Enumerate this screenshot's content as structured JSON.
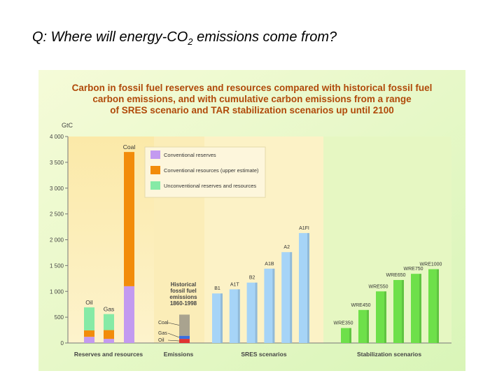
{
  "slide": {
    "title_main": "Q:  Where will energy-CO",
    "title_sub": "2",
    "title_end": " emissions come from?"
  },
  "chart_data": {
    "type": "bar",
    "title_lines": [
      "Carbon in fossil fuel reserves and resources compared with historical fossil fuel",
      "carbon emissions, and with cumulative carbon emissions from a range",
      "of SRES scenario and TAR stabilization scenarios up until 2100"
    ],
    "y_label": "GtC",
    "ylim": [
      0,
      4000
    ],
    "yticks": [
      0,
      {
        "value": 500,
        "label": "500"
      },
      {
        "value": 1000,
        "label": "1 000"
      },
      {
        "value": 1500,
        "label": "1 500"
      },
      {
        "value": 2000,
        "label": "2 000"
      },
      {
        "value": 2500,
        "label": "2 500"
      },
      {
        "value": 3000,
        "label": "3 000"
      },
      {
        "value": 3500,
        "label": "3 500"
      },
      {
        "value": 4000,
        "label": "4 000"
      }
    ],
    "group_labels": [
      "Reserves and resources",
      "Emissions",
      "SRES scenarios",
      "Stabilization scenarios"
    ],
    "reserves": {
      "categories": [
        "Oil",
        "Gas",
        "Coal"
      ],
      "series": [
        {
          "name": "Conventional reserves",
          "color": "#c39af0",
          "values": [
            120,
            80,
            1100
          ]
        },
        {
          "name": "Conventional resources (upper estimate)",
          "color": "#f28c0a",
          "values": [
            125,
            170,
            2600
          ]
        },
        {
          "name": "Unconventional reserves and resources",
          "color": "#86eaa6",
          "values": [
            445,
            310,
            0
          ]
        }
      ]
    },
    "emissions": {
      "label_lines": [
        "Historical",
        "fossil fuel",
        "emissions",
        "1860-1998"
      ],
      "series": [
        {
          "name": "Oil",
          "color": "#e03333",
          "values": [
            80
          ]
        },
        {
          "name": "Gas",
          "color": "#3a6ee0",
          "values": [
            60
          ]
        },
        {
          "name": "Coal",
          "color": "#a9a38f",
          "values": [
            410
          ]
        }
      ]
    },
    "sres": {
      "categories": [
        "B1",
        "A1T",
        "B2",
        "A1B",
        "A2",
        "A1FI"
      ],
      "values": [
        960,
        1040,
        1170,
        1440,
        1760,
        2130
      ],
      "color": "#a6d4f7"
    },
    "stabilization": {
      "categories": [
        "WRE350",
        "WRE450",
        "WRE550",
        "WRE650",
        "WRE750",
        "WRE1000"
      ],
      "values": [
        290,
        640,
        1000,
        1220,
        1340,
        1430
      ],
      "color": "#6ee04a"
    }
  }
}
